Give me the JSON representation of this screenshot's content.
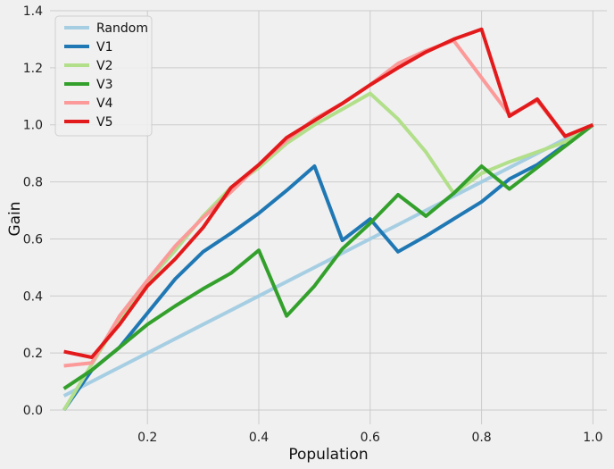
{
  "chart_data": {
    "type": "line",
    "title": "",
    "xlabel": "Population",
    "ylabel": "Gain",
    "xlim": [
      0.025,
      1.025
    ],
    "ylim": [
      -0.05,
      1.4
    ],
    "xticks": [
      0.2,
      0.4,
      0.6,
      0.8,
      1.0
    ],
    "xtick_labels": [
      "0.2",
      "0.4",
      "0.6",
      "0.8",
      "1.0"
    ],
    "yticks": [
      0.0,
      0.2,
      0.4,
      0.6,
      0.8,
      1.0,
      1.2,
      1.4
    ],
    "ytick_labels": [
      "0.0",
      "0.2",
      "0.4",
      "0.6",
      "0.8",
      "1.0",
      "1.2",
      "1.4"
    ],
    "grid": true,
    "legend_position": "top-left",
    "x": [
      0.05,
      0.1,
      0.15,
      0.2,
      0.25,
      0.3,
      0.35,
      0.4,
      0.45,
      0.5,
      0.55,
      0.6,
      0.65,
      0.7,
      0.75,
      0.8,
      0.85,
      0.9,
      0.95,
      1.0
    ],
    "series": [
      {
        "name": "Random",
        "color": "#a6cee3",
        "values": [
          0.05,
          0.1,
          0.15,
          0.2,
          0.25,
          0.3,
          0.35,
          0.4,
          0.45,
          0.5,
          0.55,
          0.6,
          0.65,
          0.7,
          0.75,
          0.8,
          0.85,
          0.9,
          0.95,
          1.0
        ]
      },
      {
        "name": "V1",
        "color": "#1f78b4",
        "values": [
          0.0,
          0.14,
          0.22,
          0.34,
          0.46,
          0.555,
          0.62,
          0.69,
          0.77,
          0.855,
          0.595,
          0.67,
          0.555,
          0.61,
          0.67,
          0.73,
          0.81,
          0.86,
          0.93,
          1.0
        ]
      },
      {
        "name": "V2",
        "color": "#b2df8a",
        "values": [
          0.0,
          0.16,
          0.32,
          0.45,
          0.56,
          0.68,
          0.78,
          0.85,
          0.935,
          1.0,
          1.055,
          1.11,
          1.02,
          0.905,
          0.76,
          0.83,
          0.87,
          0.905,
          0.94,
          1.0
        ]
      },
      {
        "name": "V3",
        "color": "#33a02c",
        "values": [
          0.075,
          0.14,
          0.22,
          0.3,
          0.365,
          0.425,
          0.48,
          0.56,
          0.33,
          0.435,
          0.565,
          0.655,
          0.755,
          0.68,
          0.76,
          0.855,
          0.775,
          0.85,
          0.925,
          1.0
        ]
      },
      {
        "name": "V4",
        "color": "#fb9a99",
        "values": [
          0.155,
          0.165,
          0.33,
          0.455,
          0.575,
          0.675,
          0.765,
          0.86,
          0.945,
          1.02,
          1.075,
          1.14,
          1.215,
          1.26,
          1.295,
          1.165,
          1.035,
          1.085,
          0.96,
          1.0
        ]
      },
      {
        "name": "V5",
        "color": "#e31a1c",
        "values": [
          0.205,
          0.185,
          0.3,
          0.435,
          0.53,
          0.64,
          0.78,
          0.86,
          0.955,
          1.015,
          1.075,
          1.14,
          1.2,
          1.255,
          1.3,
          1.335,
          1.03,
          1.09,
          0.96,
          1.0
        ]
      }
    ]
  }
}
